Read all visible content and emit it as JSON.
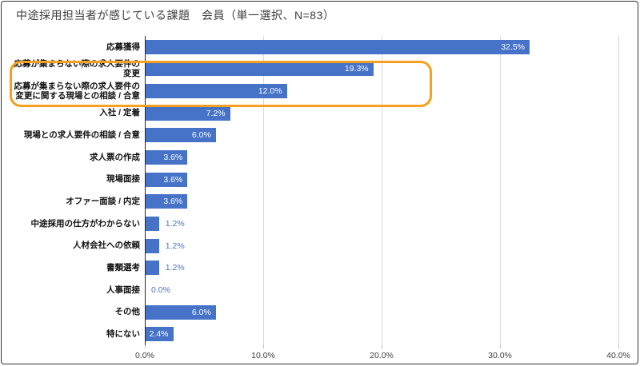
{
  "title": "中途採用担当者が感じている課題　会員（単一選択、N=83）",
  "colors": {
    "bar": "#4673C8",
    "value_label_inside": "#FFFFFF",
    "value_label_outside": "#4673C8",
    "highlight_box": "#F5A01E",
    "gridline": "#D9D9D9",
    "axis": "#262626"
  },
  "chart_data": {
    "type": "bar",
    "orientation": "horizontal",
    "title": "中途採用担当者が感じている課題　会員（単一選択、N=83）",
    "categories": [
      "応募獲得",
      "応募が集まらない際の求人要件の\n変更",
      "応募が集まらない際の求人要件の\n変更に関する現場との相談 / 合意",
      "入社 / 定着",
      "現場との求人要件の相談 / 合意",
      "求人票の作成",
      "現場面接",
      "オファー面談 / 内定",
      "中途採用の仕方がわからない",
      "人材会社への依頼",
      "書類選考",
      "人事面接",
      "その他",
      "特にない"
    ],
    "values": [
      32.5,
      19.3,
      12.0,
      7.2,
      6.0,
      3.6,
      3.6,
      3.6,
      1.2,
      1.2,
      1.2,
      0.0,
      6.0,
      2.4
    ],
    "value_labels": [
      "32.5%",
      "19.3%",
      "12.0%",
      "7.2%",
      "6.0%",
      "3.6%",
      "3.6%",
      "3.6%",
      "1.2%",
      "1.2%",
      "1.2%",
      "0.0%",
      "6.0%",
      "2.4%"
    ],
    "x_axis": {
      "min": 0,
      "max": 40,
      "tick_values": [
        0,
        10,
        20,
        30,
        40
      ],
      "tick_labels": [
        "0.0%",
        "10.0%",
        "20.0%",
        "30.0%",
        "40.0%"
      ]
    },
    "grid": true,
    "legend": false,
    "annotation": {
      "type": "highlight-box",
      "highlighted_rows": [
        2,
        3
      ],
      "color": "#F5A01E"
    }
  }
}
